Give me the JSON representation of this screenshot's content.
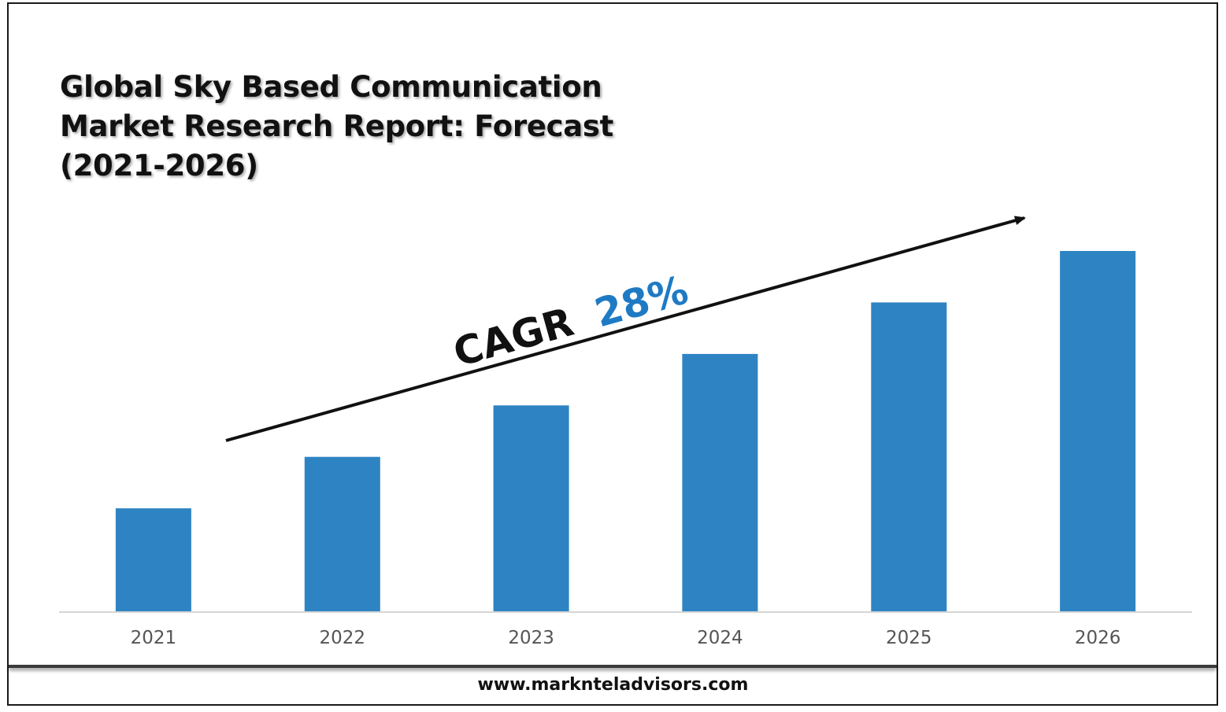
{
  "title_lines": [
    "Global Sky Based Communication",
    "Market Research Report: Forecast",
    "(2021-2026)"
  ],
  "annotation": {
    "cagr_label": "CAGR",
    "cagr_value": "28%",
    "label_color": "#111111",
    "value_color": "#1f7ac4"
  },
  "footer": {
    "website": "www.marknteladvisors.com"
  },
  "colors": {
    "bar": "#2e84c3",
    "axis": "#d6d6d6",
    "arrow": "#111111"
  },
  "chart_data": {
    "type": "bar",
    "categories": [
      "2021",
      "2022",
      "2023",
      "2024",
      "2025",
      "2026"
    ],
    "values": [
      1.0,
      1.5,
      2.0,
      2.5,
      3.0,
      3.5
    ],
    "ylim": [
      0,
      3.5
    ],
    "grid": false,
    "legend": "none",
    "xlabel": "",
    "ylabel": ""
  }
}
